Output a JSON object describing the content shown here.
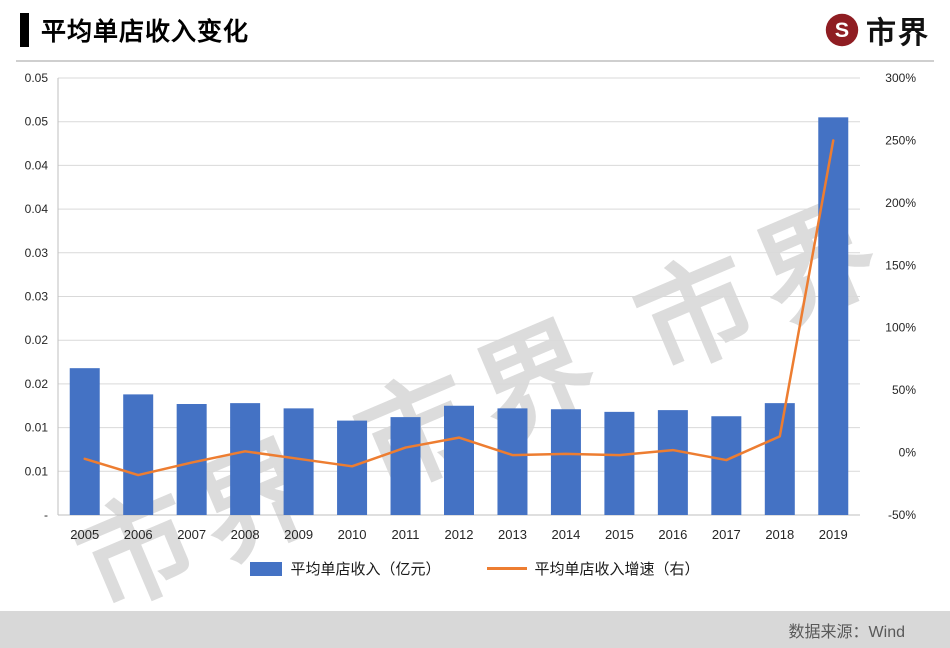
{
  "header": {
    "title": "平均单店收入变化",
    "logo_text": "市界"
  },
  "watermark": {
    "text": "市界 市界 市界"
  },
  "chart_data": {
    "type": "combo",
    "categories": [
      "2005",
      "2006",
      "2007",
      "2008",
      "2009",
      "2010",
      "2011",
      "2012",
      "2013",
      "2014",
      "2015",
      "2016",
      "2017",
      "2018",
      "2019"
    ],
    "series": [
      {
        "name": "平均单店收入（亿元）",
        "type": "bar",
        "axis": "left",
        "color": "#4472c4",
        "values": [
          0.0168,
          0.0138,
          0.0127,
          0.0128,
          0.0122,
          0.0108,
          0.0112,
          0.0125,
          0.0122,
          0.0121,
          0.0118,
          0.012,
          0.0113,
          0.0128,
          0.0455
        ]
      },
      {
        "name": "平均单店收入增速（右）",
        "type": "line",
        "axis": "right",
        "color": "#ed7d31",
        "values": [
          -5,
          -18,
          -8,
          1,
          -5,
          -11,
          4,
          12,
          -2,
          -1,
          -2,
          2,
          -6,
          13,
          250
        ]
      }
    ],
    "left_axis": {
      "min": 0,
      "max": 0.05,
      "tick_labels_top_to_bottom": [
        "0.05",
        "0.05",
        "0.04",
        "0.04",
        "0.03",
        "0.03",
        "0.02",
        "0.02",
        "0.01",
        "0.01",
        "-"
      ]
    },
    "right_axis": {
      "min": -50,
      "max": 300,
      "tick_labels_top_to_bottom": [
        "300%",
        "250%",
        "200%",
        "150%",
        "100%",
        "50%",
        "0%",
        "-50%"
      ]
    },
    "grid": true,
    "legend_position": "bottom"
  },
  "footer": {
    "source": "数据来源：Wind"
  }
}
